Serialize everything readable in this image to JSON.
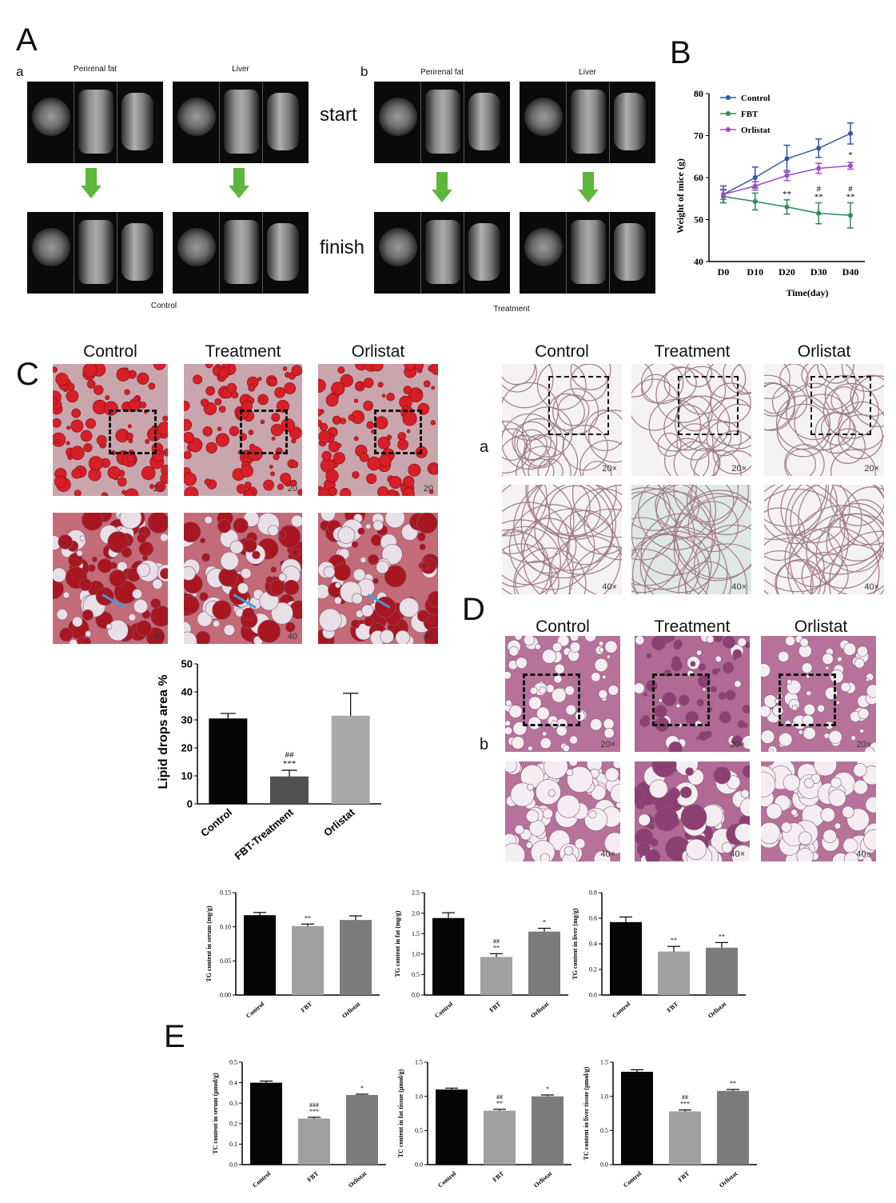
{
  "panel_letters": {
    "A": "A",
    "B": "B",
    "C": "C",
    "D": "D",
    "E": "E"
  },
  "panel_A": {
    "sub_a": "a",
    "sub_b": "b",
    "label_perirenal": "Perirenal fat",
    "label_liver": "Liver",
    "word_start": "start",
    "word_finish": "finish",
    "caption_a": "Control",
    "caption_b": "Treatment"
  },
  "panel_C": {
    "titles": [
      "Control",
      "Treatment",
      "Orlistat"
    ],
    "mag_20": "20",
    "mag_40": "40"
  },
  "panel_D": {
    "titles": [
      "Control",
      "Treatment",
      "Orlistat"
    ],
    "sub_a": "a",
    "sub_b": "b",
    "mag_20x": "20×",
    "mag_40x": "40×"
  },
  "colors": {
    "control": "#2f57a6",
    "fbt": "#2e8b57",
    "orlistat": "#9b4fc2",
    "arrow": "#5cb73b",
    "blue_arrow": "#3aa0e0"
  },
  "chart_data": [
    {
      "id": "B",
      "type": "line",
      "x": [
        "D0",
        "D10",
        "D20",
        "D30",
        "D40"
      ],
      "xlabel": "Time(day)",
      "ylabel": "Weight of mice (g)",
      "ylim": [
        40,
        80
      ],
      "yticks": [
        40,
        50,
        60,
        70,
        80
      ],
      "legend_position": "top-left",
      "series": [
        {
          "name": "Control",
          "values": [
            56,
            60,
            64.5,
            67,
            70.5
          ],
          "err": [
            2,
            2.5,
            3.2,
            2.2,
            2.5
          ]
        },
        {
          "name": "FBT",
          "values": [
            55.5,
            54.3,
            53,
            51.5,
            51
          ],
          "err": [
            1.5,
            2,
            1.7,
            2.5,
            3
          ]
        },
        {
          "name": "Orlistat",
          "values": [
            56,
            58,
            60.5,
            62.2,
            62.8
          ],
          "err": [
            1.2,
            1,
            1.2,
            1.2,
            0.8
          ]
        }
      ],
      "annotations": [
        {
          "x": "D20",
          "upper": "",
          "lower": "**"
        },
        {
          "x": "D30",
          "upper": "#",
          "lower": "**"
        },
        {
          "x": "D40",
          "upper": "#",
          "lower": "**"
        },
        {
          "x": "D40",
          "orlistat": "*"
        }
      ]
    },
    {
      "id": "C-bar",
      "type": "bar",
      "categories": [
        "Control",
        "FBT-Treatment",
        "Orlistat"
      ],
      "values": [
        30.5,
        9.8,
        31.5
      ],
      "err": [
        1.8,
        2.2,
        8
      ],
      "ylabel": "Lipid drops area %",
      "ylim": [
        0,
        50
      ],
      "yticks": [
        0,
        10,
        20,
        30,
        40,
        50
      ],
      "annotations": [
        "",
        "##\n***",
        ""
      ]
    },
    {
      "id": "E1",
      "type": "bar",
      "categories": [
        "Control",
        "FBT",
        "Orlistat"
      ],
      "values": [
        0.117,
        0.101,
        0.11
      ],
      "err": [
        0.004,
        0.003,
        0.006
      ],
      "ylabel": "TG content in  serum (mg/g)",
      "ylim": [
        0,
        0.15
      ],
      "yticks": [
        "0.00",
        "0.05",
        "0.10",
        "0.15"
      ],
      "annotations": [
        "",
        "**",
        ""
      ]
    },
    {
      "id": "E2",
      "type": "bar",
      "categories": [
        "Control",
        "FBT",
        "Orlistat"
      ],
      "values": [
        1.88,
        0.93,
        1.55
      ],
      "err": [
        0.13,
        0.08,
        0.08
      ],
      "ylabel": "TG content in fat  (mg/g)",
      "ylim": [
        0,
        2.5
      ],
      "yticks": [
        "0.0",
        "0.5",
        "1.0",
        "1.5",
        "2.0",
        "2.5"
      ],
      "annotations": [
        "",
        "##\n**",
        "*"
      ]
    },
    {
      "id": "E3",
      "type": "bar",
      "categories": [
        "Control",
        "FBT",
        "Orlistat"
      ],
      "values": [
        0.57,
        0.34,
        0.37
      ],
      "err": [
        0.04,
        0.04,
        0.04
      ],
      "ylabel": "TG content in liver  (mg/g)",
      "ylim": [
        0,
        0.8
      ],
      "yticks": [
        "0.0",
        "0.2",
        "0.4",
        "0.6",
        "0.8"
      ],
      "annotations": [
        "",
        "**",
        "**"
      ]
    },
    {
      "id": "E4",
      "type": "bar",
      "categories": [
        "Control",
        "FBT",
        "Orlistat"
      ],
      "values": [
        0.4,
        0.225,
        0.34
      ],
      "err": [
        0.008,
        0.006,
        0.004
      ],
      "ylabel": "TC content in serum (µmol/g)",
      "ylim": [
        0,
        0.5
      ],
      "yticks": [
        "0.0",
        "0.1",
        "0.2",
        "0.3",
        "0.4",
        "0.5"
      ],
      "annotations": [
        "",
        "###\n***",
        "*"
      ]
    },
    {
      "id": "E5",
      "type": "bar",
      "categories": [
        "Control",
        "FBT",
        "Orlistat"
      ],
      "values": [
        1.1,
        0.79,
        1.0
      ],
      "err": [
        0.02,
        0.02,
        0.02
      ],
      "ylabel": "TC content in fat tissue (µmol/g)",
      "ylim": [
        0,
        1.5
      ],
      "yticks": [
        "0.0",
        "0.5",
        "1.0",
        "1.5"
      ],
      "annotations": [
        "",
        "##\n**",
        "*"
      ]
    },
    {
      "id": "E6",
      "type": "bar",
      "categories": [
        "Control",
        "FBT",
        "Orlistat"
      ],
      "values": [
        1.36,
        0.78,
        1.08
      ],
      "err": [
        0.03,
        0.02,
        0.02
      ],
      "ylabel": "TC content in liver tissue (µmol/g)",
      "ylim": [
        0,
        1.5
      ],
      "yticks": [
        "0.0",
        "0.5",
        "1.0",
        "1.5"
      ],
      "annotations": [
        "",
        "##\n***",
        "**"
      ]
    }
  ]
}
